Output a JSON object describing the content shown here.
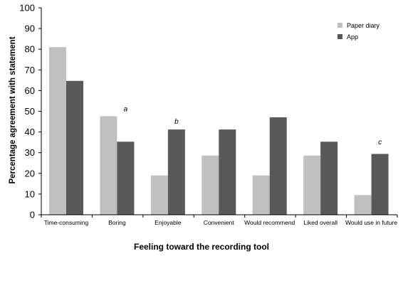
{
  "chart_data": {
    "type": "bar",
    "title": "",
    "xlabel": "Feeling toward the recording tool",
    "ylabel": "Percentage agreement with statement",
    "ylim": [
      0,
      100
    ],
    "yticks": [
      0,
      10,
      20,
      30,
      40,
      50,
      60,
      70,
      80,
      90,
      100
    ],
    "grid": false,
    "legend_position": "top-right",
    "categories": [
      "Time-consuming",
      "Boring",
      "Enjoyable",
      "Convenient",
      "Would recommend",
      "Liked overall",
      "Would use in future"
    ],
    "series": [
      {
        "name": "Paper diary",
        "color": "#c0c0c0",
        "values": [
          81,
          47.6,
          19,
          28.6,
          19,
          28.6,
          9.5
        ]
      },
      {
        "name": "App",
        "color": "#595959",
        "values": [
          64.7,
          35.3,
          41.2,
          41.2,
          47.1,
          35.3,
          29.4
        ]
      }
    ],
    "annotations": [
      {
        "text": "a",
        "category": "Boring",
        "value": 50
      },
      {
        "text": "b",
        "category": "Enjoyable",
        "value": 44
      },
      {
        "text": "c",
        "category": "Would use in future",
        "value": 34
      }
    ]
  }
}
